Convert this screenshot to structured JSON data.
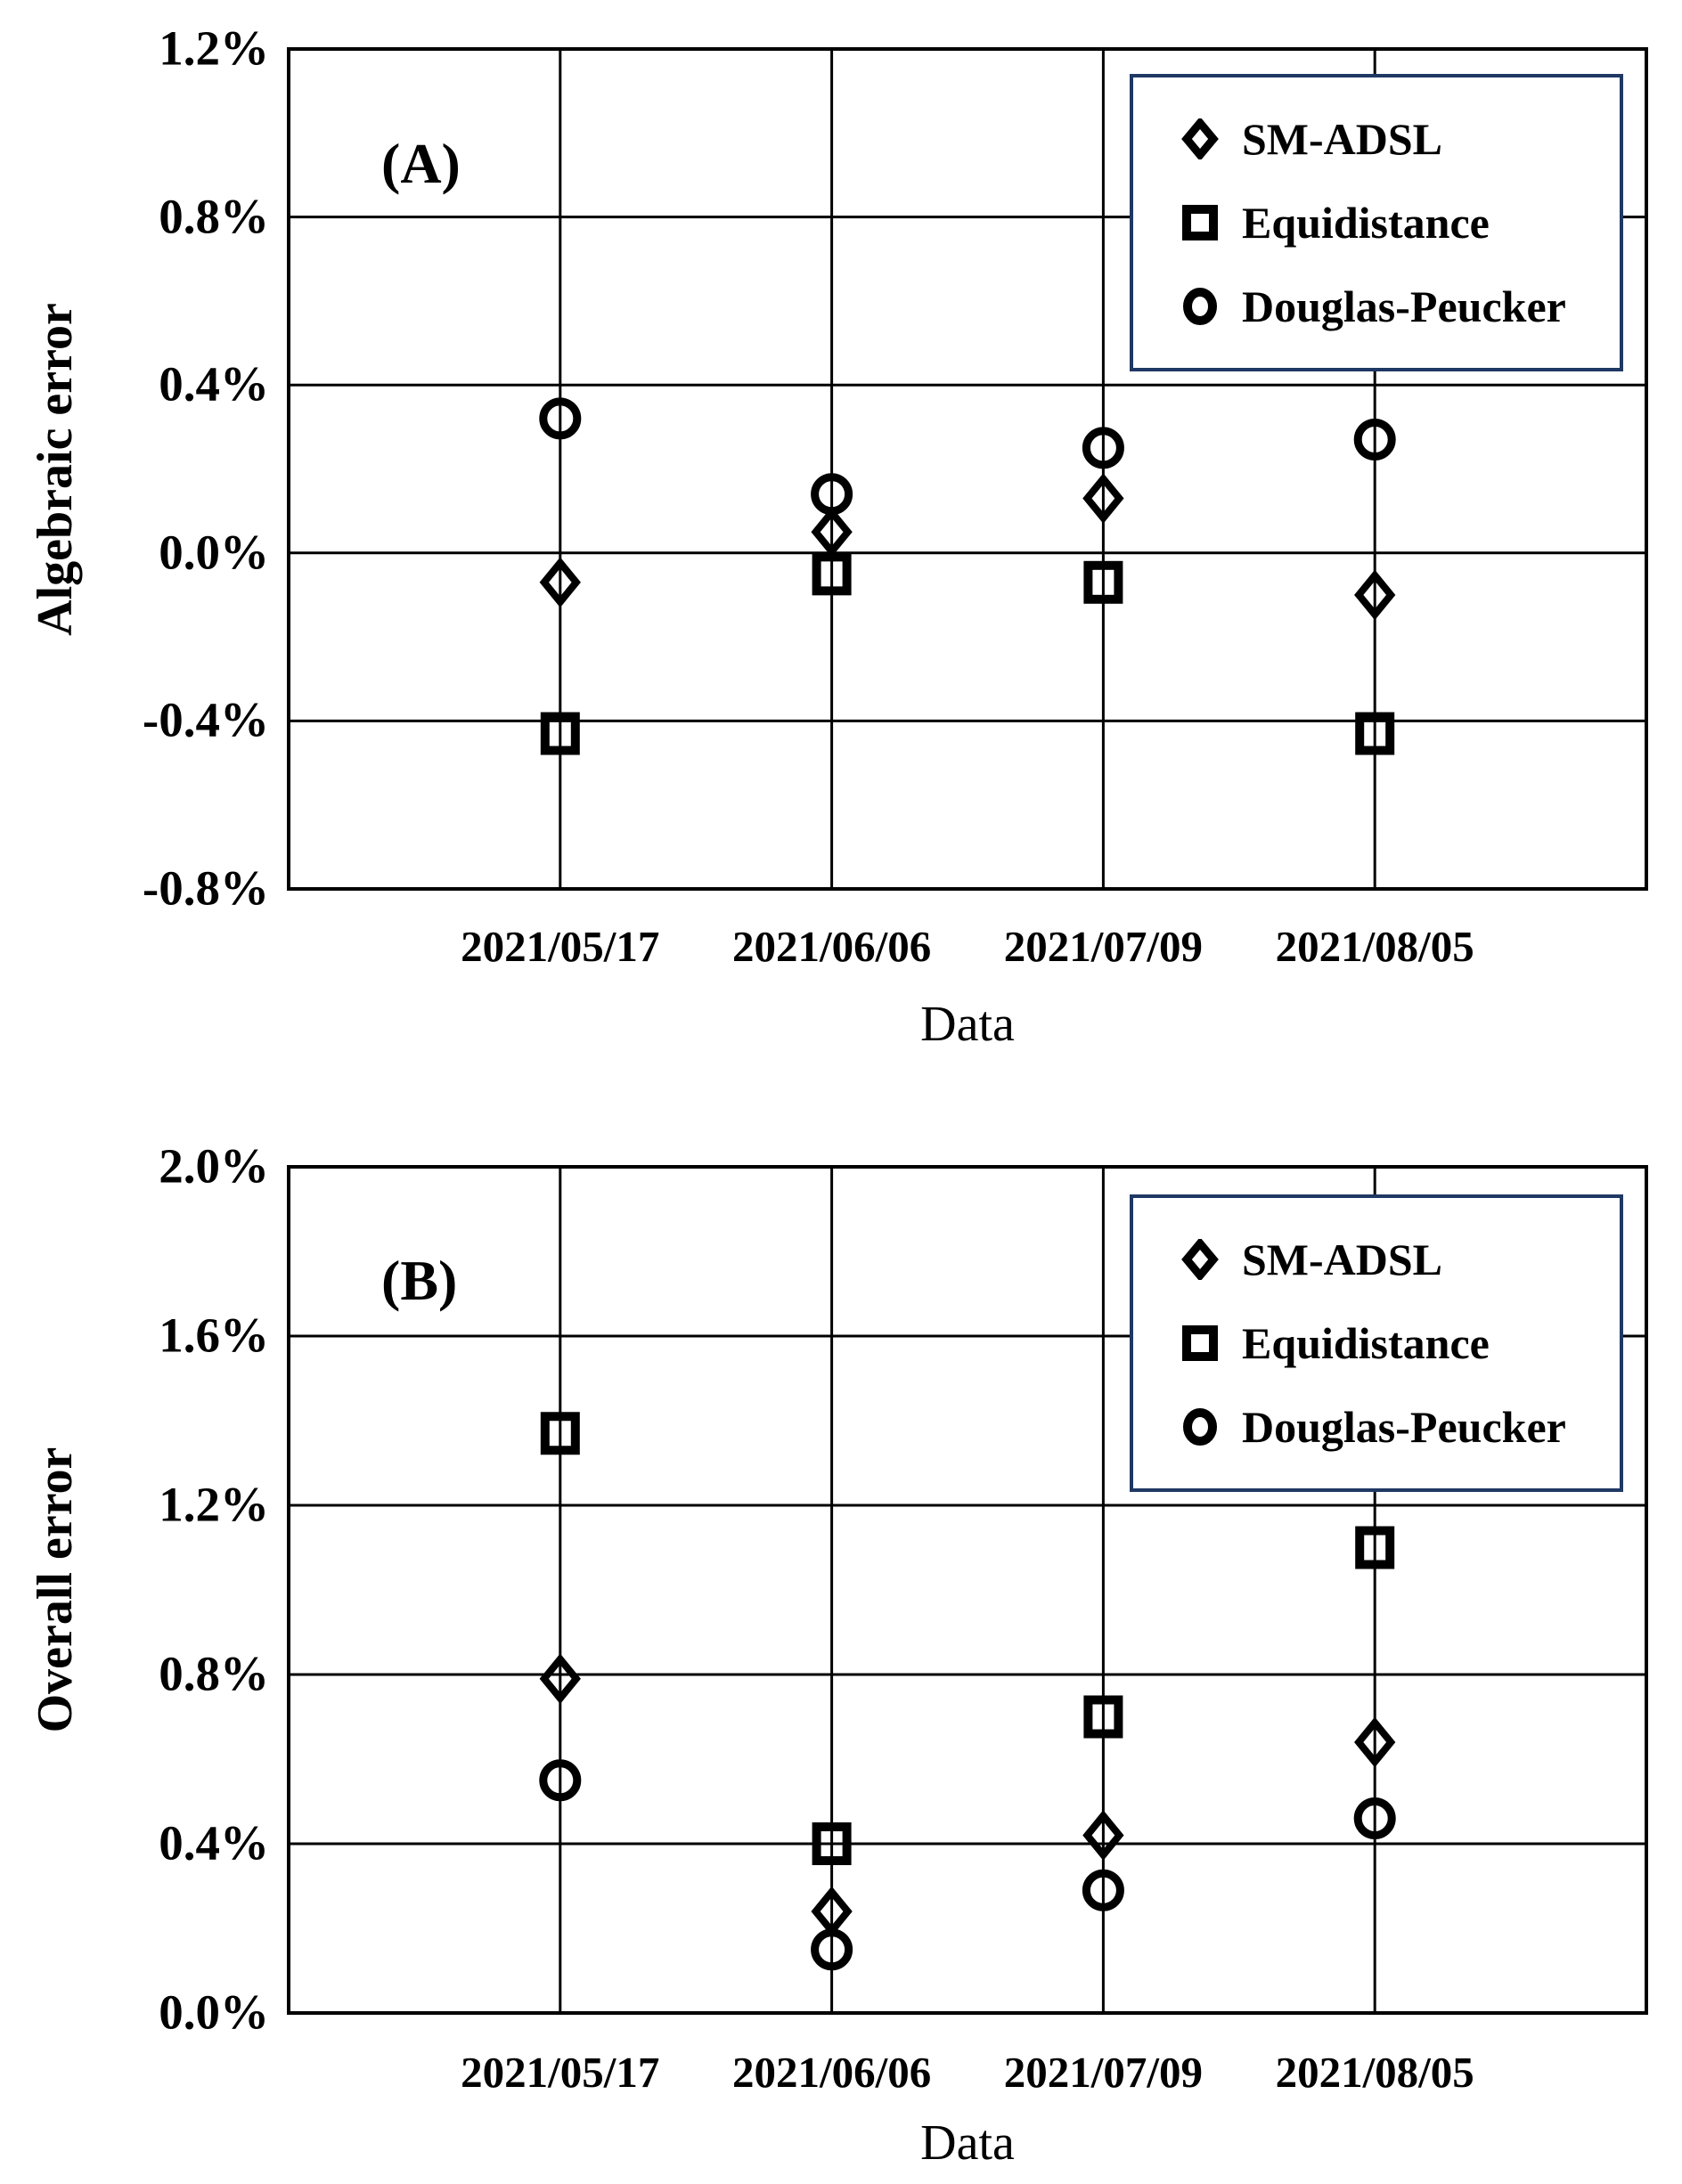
{
  "figure": {
    "background": "#ffffff",
    "panels": [
      "(A)",
      "(B)"
    ]
  },
  "colors": {
    "marker": "#000000",
    "grid": "#000000",
    "border": "#000000",
    "text": "#000000",
    "legend_border": "#1f3864",
    "background": "#ffffff"
  },
  "legend": {
    "position": "top-right",
    "border_color": "#1f3864",
    "items": [
      {
        "label": "SM-ADSL",
        "marker": "diamond"
      },
      {
        "label": "Equidistance",
        "marker": "square"
      },
      {
        "label": "Douglas-Peucker",
        "marker": "circle"
      }
    ]
  },
  "chart_data": [
    {
      "type": "scatter",
      "panel_label": "(A)",
      "xlabel": "Data",
      "ylabel": "Algebraic error",
      "categories": [
        "2021/05/17",
        "2021/06/06",
        "2021/07/09",
        "2021/08/05"
      ],
      "grid": true,
      "legend_position": "top-right",
      "y_axis": {
        "min": -0.8,
        "max": 1.2,
        "step": 0.4,
        "unit": "%",
        "tick_labels": [
          "1.2%",
          "0.8%",
          "0.4%",
          "0.0%",
          "-0.4%",
          "-0.8%"
        ]
      },
      "series": [
        {
          "name": "SM-ADSL",
          "marker": "diamond",
          "values_pct": [
            -0.07,
            0.05,
            0.13,
            -0.1
          ]
        },
        {
          "name": "Equidistance",
          "marker": "square",
          "values_pct": [
            -0.43,
            -0.05,
            -0.07,
            -0.43
          ]
        },
        {
          "name": "Douglas-Peucker",
          "marker": "circle",
          "values_pct": [
            0.32,
            0.14,
            0.25,
            0.27
          ]
        }
      ]
    },
    {
      "type": "scatter",
      "panel_label": "(B)",
      "xlabel": "Data",
      "ylabel": "Overall error",
      "categories": [
        "2021/05/17",
        "2021/06/06",
        "2021/07/09",
        "2021/08/05"
      ],
      "grid": true,
      "legend_position": "top-right",
      "y_axis": {
        "min": 0.0,
        "max": 2.0,
        "step": 0.4,
        "unit": "%",
        "tick_labels": [
          "2.0%",
          "1.6%",
          "1.2%",
          "0.8%",
          "0.4%",
          "0.0%"
        ]
      },
      "series": [
        {
          "name": "SM-ADSL",
          "marker": "diamond",
          "values_pct": [
            0.79,
            0.24,
            0.42,
            0.64
          ]
        },
        {
          "name": "Equidistance",
          "marker": "square",
          "values_pct": [
            1.37,
            0.4,
            0.7,
            1.1
          ]
        },
        {
          "name": "Douglas-Peucker",
          "marker": "circle",
          "values_pct": [
            0.55,
            0.15,
            0.29,
            0.46
          ]
        }
      ]
    }
  ]
}
